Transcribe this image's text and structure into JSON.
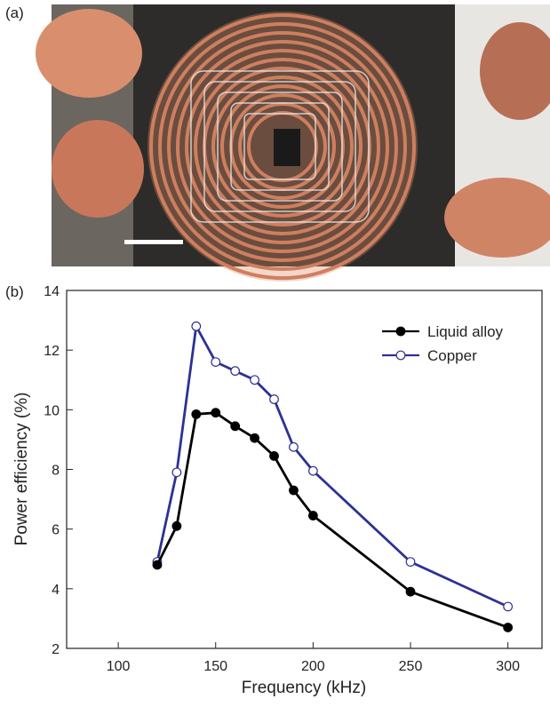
{
  "panel_labels": [
    "(a)",
    "(b)"
  ],
  "chart_data": {
    "type": "line",
    "x_label": "Frequency (kHz)",
    "y_label": "Power efficiency (%)",
    "x": [
      120,
      130,
      140,
      150,
      160,
      170,
      180,
      190,
      200,
      250,
      300
    ],
    "series": [
      {
        "name": "Liquid alloy",
        "color": "#000000",
        "marker": "filled",
        "values": [
          4.8,
          6.1,
          9.85,
          9.9,
          9.45,
          9.05,
          8.45,
          7.3,
          6.45,
          3.9,
          2.7
        ]
      },
      {
        "name": "Copper",
        "color": "#2e3192",
        "marker": "open",
        "values": [
          4.9,
          7.9,
          12.8,
          11.6,
          11.3,
          11.0,
          10.35,
          8.75,
          7.95,
          4.9,
          3.4
        ]
      }
    ],
    "xlim": [
      73.5,
      317.5
    ],
    "xticks": [
      100,
      150,
      200,
      250,
      300
    ],
    "ylim": [
      2,
      14
    ],
    "yticks": [
      2,
      4,
      6,
      8,
      10,
      12,
      14
    ],
    "legend": "upper right"
  }
}
